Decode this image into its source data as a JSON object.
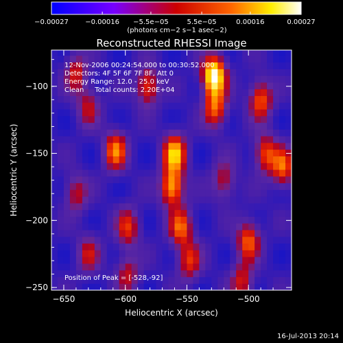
{
  "chart_data": {
    "type": "heatmap",
    "title": "Reconstructed RHESSI Image",
    "xlabel": "Heliocentric X (arcsec)",
    "ylabel": "Heliocentric Y (arcsec)",
    "xlim": [
      -660,
      -465
    ],
    "ylim": [
      -252,
      -73
    ],
    "x_ticks": [
      -650,
      -600,
      -550,
      -500
    ],
    "x_tick_labels": [
      "−650",
      "−600",
      "−550",
      "−500"
    ],
    "y_ticks": [
      -250,
      -200,
      -150,
      -100
    ],
    "y_tick_labels": [
      "−250",
      "−200",
      "−150",
      "−100"
    ],
    "colorbar": {
      "ticks": [
        -0.00027,
        -0.00016,
        -5.5e-05,
        5.5e-05,
        0.00016,
        0.00027
      ],
      "tick_labels": [
        "−0.00027",
        "−0.00016",
        "−5.5e−05",
        "5.5e−05",
        "0.00016",
        "0.00027"
      ],
      "units": "(photons cm−2 s−1 asec−2)",
      "colormap": [
        "#0000ff",
        "#8800ff",
        "#ff0000",
        "#ff8800",
        "#ffff00",
        "#ffffff"
      ]
    },
    "annotations": {
      "time_range": "12-Nov-2006 00:24:54.000 to 00:30:52.000",
      "detectors": "Detectors: 4F 5F 6F 7F 8F, Att 0",
      "energy_range": "Energy Range: 12.0 - 25.0 keV",
      "clean": "Clean     Total counts: 2.20E+04",
      "peak": "Position of Peak = [-528,-92]"
    },
    "peak": [
      -528,
      -92
    ],
    "hot_spots": [
      {
        "x": -528,
        "y": -92,
        "v": 1.0
      },
      {
        "x": -527,
        "y": -116,
        "v": 0.55
      },
      {
        "x": -560,
        "y": -150,
        "v": 0.75
      },
      {
        "x": -562,
        "y": -175,
        "v": 0.7
      },
      {
        "x": -555,
        "y": -205,
        "v": 0.55
      },
      {
        "x": -548,
        "y": -230,
        "v": 0.45
      },
      {
        "x": -608,
        "y": -148,
        "v": 0.6
      },
      {
        "x": -598,
        "y": -205,
        "v": 0.45
      },
      {
        "x": -582,
        "y": -100,
        "v": 0.5
      },
      {
        "x": -490,
        "y": -110,
        "v": 0.55
      },
      {
        "x": -486,
        "y": -150,
        "v": 0.5
      },
      {
        "x": -472,
        "y": -160,
        "v": 0.55
      },
      {
        "x": -500,
        "y": -215,
        "v": 0.55
      },
      {
        "x": -640,
        "y": -90,
        "v": 0.4
      },
      {
        "x": -630,
        "y": -115,
        "v": 0.35
      },
      {
        "x": -640,
        "y": -180,
        "v": 0.35
      },
      {
        "x": -630,
        "y": -225,
        "v": 0.35
      },
      {
        "x": -520,
        "y": -170,
        "v": 0.35
      },
      {
        "x": -505,
        "y": -245,
        "v": 0.4
      },
      {
        "x": -598,
        "y": -240,
        "v": 0.35
      }
    ]
  },
  "footer": {
    "date": "16-Jul-2013 20:14"
  }
}
